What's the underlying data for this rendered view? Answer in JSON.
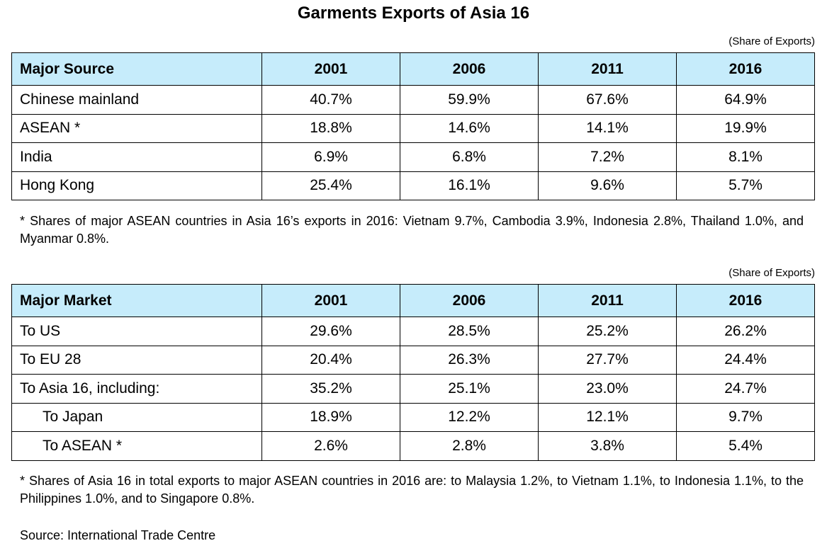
{
  "title": "Garments Exports of Asia 16",
  "unit_label": "(Share of Exports)",
  "table_source": {
    "headers": [
      "Major Source",
      "2001",
      "2006",
      "2011",
      "2016"
    ],
    "rows": [
      {
        "label": "Chinese mainland",
        "values": [
          "40.7%",
          "59.9%",
          "67.6%",
          "64.9%"
        ]
      },
      {
        "label": "ASEAN *",
        "values": [
          "18.8%",
          "14.6%",
          "14.1%",
          "19.9%"
        ]
      },
      {
        "label": "India",
        "values": [
          "6.9%",
          "6.8%",
          "7.2%",
          "8.1%"
        ]
      },
      {
        "label": "Hong Kong",
        "values": [
          "25.4%",
          "16.1%",
          "9.6%",
          "5.7%"
        ]
      }
    ],
    "footnote": "* Shares of major ASEAN countries in Asia 16’s exports in 2016: Vietnam 9.7%, Cambodia 3.9%, Indonesia 2.8%, Thailand 1.0%, and Myanmar 0.8%."
  },
  "table_market": {
    "headers": [
      "Major Market",
      "2001",
      "2006",
      "2011",
      "2016"
    ],
    "rows": [
      {
        "label": "To US",
        "values": [
          "29.6%",
          "28.5%",
          "25.2%",
          "26.2%"
        ]
      },
      {
        "label": "To EU 28",
        "values": [
          "20.4%",
          "26.3%",
          "27.7%",
          "24.4%"
        ]
      },
      {
        "label": "To Asia 16, including:",
        "values": [
          "35.2%",
          "25.1%",
          "23.0%",
          "24.7%"
        ]
      },
      {
        "label": "To Japan",
        "values": [
          "18.9%",
          "12.2%",
          "12.1%",
          "9.7%"
        ]
      },
      {
        "label": "To ASEAN *",
        "values": [
          "2.6%",
          "2.8%",
          "3.8%",
          "5.4%"
        ]
      }
    ],
    "footnote": "* Shares of Asia 16 in total exports to major ASEAN countries in 2016 are: to Malaysia 1.2%, to Vietnam 1.1%, to Indonesia 1.1%, to the Philippines 1.0%, and to Singapore 0.8%."
  },
  "source": "Source: International Trade Centre",
  "colors": {
    "header_background": "#c6ecfb",
    "border": "#000000"
  }
}
